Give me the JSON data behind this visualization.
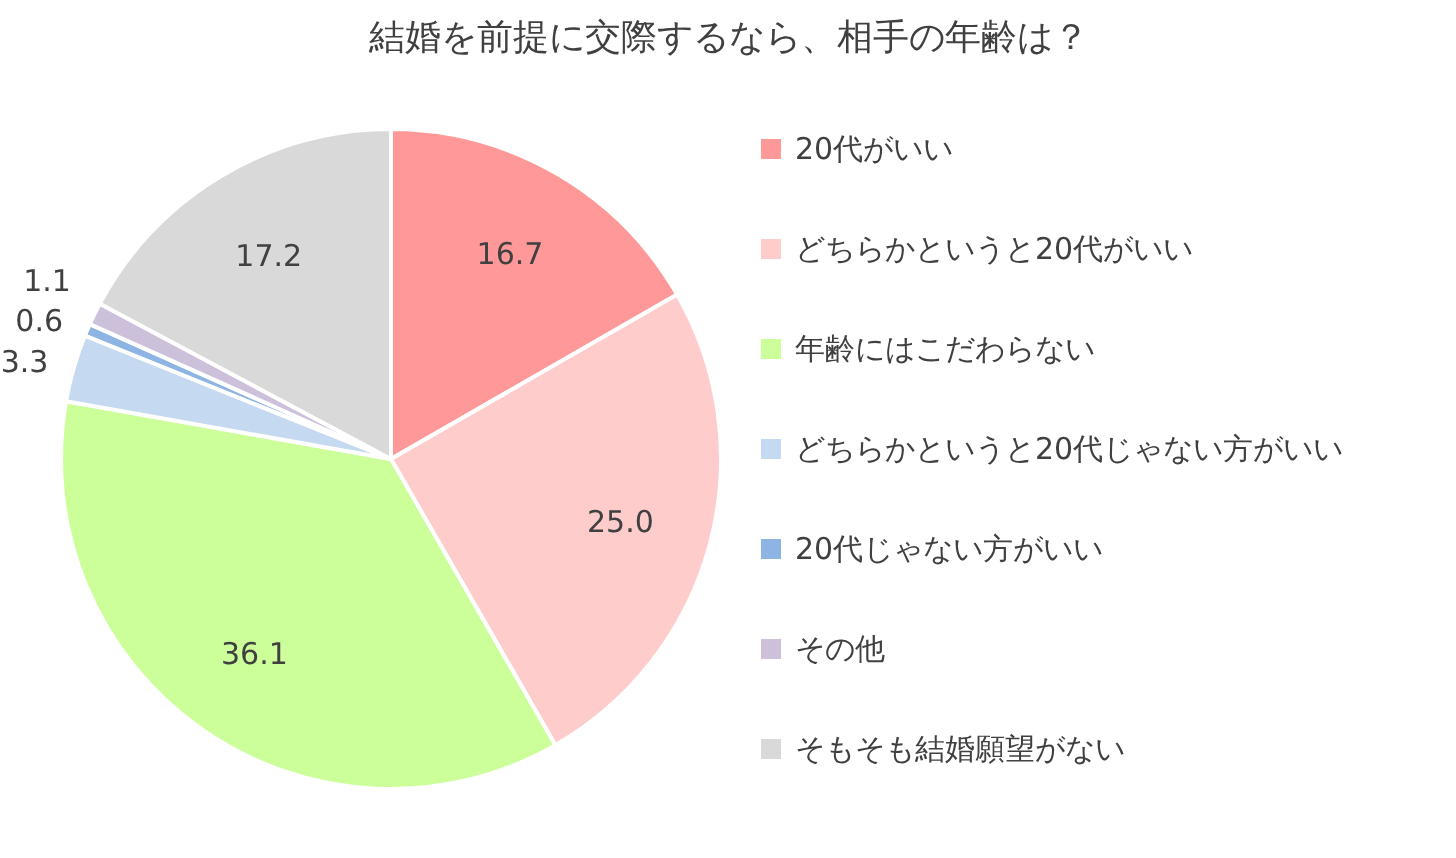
{
  "chart_data": {
    "type": "pie",
    "title": "結婚を前提に交際するなら、相手の年齢は？",
    "categories": [
      "20代がいい",
      "どちらかというと20代がいい",
      "年齢にはこだわらない",
      "どちらかというと20代じゃない方がいい",
      "20代じゃない方がいい",
      "その他",
      "そもそも結婚願望がない"
    ],
    "values": [
      16.7,
      25.0,
      36.1,
      3.3,
      0.6,
      1.1,
      17.2
    ],
    "value_labels": [
      "16.7",
      "25.0",
      "36.1",
      "3.3",
      "0.6",
      "1.1",
      "17.2"
    ],
    "colors": [
      "#ff9999",
      "#ffcccc",
      "#ccff99",
      "#c5d9f1",
      "#8db4e2",
      "#ccc0da",
      "#d9d9d9"
    ],
    "legend": "right"
  }
}
